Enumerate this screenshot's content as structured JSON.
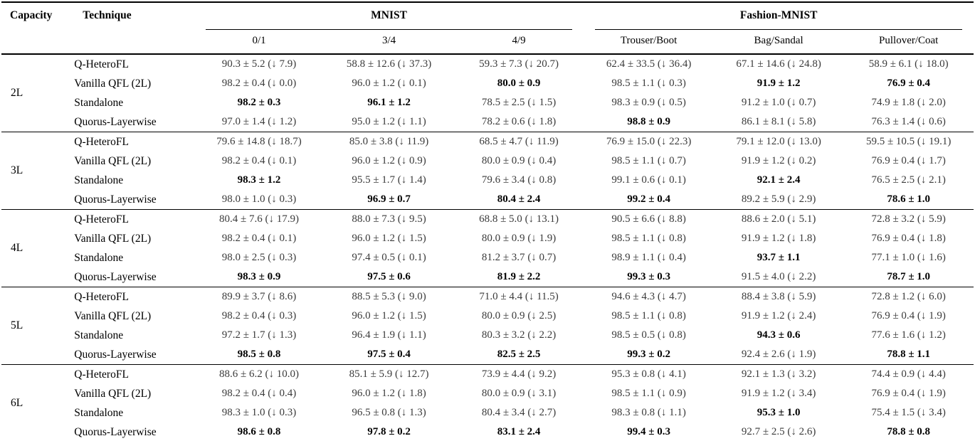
{
  "table": {
    "col_headers": {
      "capacity": "Capacity",
      "technique": "Technique"
    },
    "groups": [
      {
        "label": "MNIST",
        "subcols": [
          "0/1",
          "3/4",
          "4/9"
        ]
      },
      {
        "label": "Fashion-MNIST",
        "subcols": [
          "Trouser/Boot",
          "Bag/Sandal",
          "Pullover/Coat"
        ]
      }
    ],
    "blocks": [
      {
        "capacity": "2L",
        "rows": [
          {
            "technique": "Q-HeteroFL",
            "cells": [
              {
                "value": "90.3 ± 5.2",
                "drop": "(↓ 7.9)"
              },
              {
                "value": "58.8 ± 12.6",
                "drop": "(↓ 37.3)"
              },
              {
                "value": "59.3 ± 7.3",
                "drop": "(↓ 20.7)"
              },
              {
                "value": "62.4 ± 33.5",
                "drop": "(↓ 36.4)"
              },
              {
                "value": "67.1 ± 14.6",
                "drop": "(↓ 24.8)"
              },
              {
                "value": "58.9 ± 6.1",
                "drop": "(↓ 18.0)"
              }
            ]
          },
          {
            "technique": "Vanilla QFL (2L)",
            "cells": [
              {
                "value": "98.2 ± 0.4",
                "drop": "(↓ 0.0)"
              },
              {
                "value": "96.0 ± 1.2",
                "drop": "(↓ 0.1)"
              },
              {
                "value": "80.0 ± 0.9",
                "bold": true
              },
              {
                "value": "98.5 ± 1.1",
                "drop": "(↓ 0.3)"
              },
              {
                "value": "91.9 ± 1.2",
                "bold": true
              },
              {
                "value": "76.9 ± 0.4",
                "bold": true
              }
            ]
          },
          {
            "technique": "Standalone",
            "cells": [
              {
                "value": "98.2 ± 0.3",
                "bold": true
              },
              {
                "value": "96.1 ± 1.2",
                "bold": true
              },
              {
                "value": "78.5 ± 2.5",
                "drop": "(↓ 1.5)"
              },
              {
                "value": "98.3 ± 0.9",
                "drop": "(↓ 0.5)"
              },
              {
                "value": "91.2 ± 1.0",
                "drop": "(↓ 0.7)"
              },
              {
                "value": "74.9 ± 1.8",
                "drop": "(↓ 2.0)"
              }
            ]
          },
          {
            "technique": "Quorus-Layerwise",
            "cells": [
              {
                "value": "97.0 ± 1.4",
                "drop": "(↓ 1.2)"
              },
              {
                "value": "95.0 ± 1.2",
                "drop": "(↓ 1.1)"
              },
              {
                "value": "78.2 ± 0.6",
                "drop": "(↓ 1.8)"
              },
              {
                "value": "98.8 ± 0.9",
                "bold": true
              },
              {
                "value": "86.1 ± 8.1",
                "drop": "(↓ 5.8)"
              },
              {
                "value": "76.3 ± 1.4",
                "drop": "(↓ 0.6)"
              }
            ]
          }
        ]
      },
      {
        "capacity": "3L",
        "rows": [
          {
            "technique": "Q-HeteroFL",
            "cells": [
              {
                "value": "79.6 ± 14.8",
                "drop": "(↓ 18.7)"
              },
              {
                "value": "85.0 ± 3.8",
                "drop": "(↓ 11.9)"
              },
              {
                "value": "68.5 ± 4.7",
                "drop": "(↓ 11.9)"
              },
              {
                "value": "76.9 ± 15.0",
                "drop": "(↓ 22.3)"
              },
              {
                "value": "79.1 ± 12.0",
                "drop": "(↓ 13.0)"
              },
              {
                "value": "59.5 ± 10.5",
                "drop": "(↓ 19.1)"
              }
            ]
          },
          {
            "technique": "Vanilla QFL (2L)",
            "cells": [
              {
                "value": "98.2 ± 0.4",
                "drop": "(↓ 0.1)"
              },
              {
                "value": "96.0 ± 1.2",
                "drop": "(↓ 0.9)"
              },
              {
                "value": "80.0 ± 0.9",
                "drop": "(↓ 0.4)"
              },
              {
                "value": "98.5 ± 1.1",
                "drop": "(↓ 0.7)"
              },
              {
                "value": "91.9 ± 1.2",
                "drop": "(↓ 0.2)"
              },
              {
                "value": "76.9 ± 0.4",
                "drop": "(↓ 1.7)"
              }
            ]
          },
          {
            "technique": "Standalone",
            "cells": [
              {
                "value": "98.3 ± 1.2",
                "bold": true
              },
              {
                "value": "95.5 ± 1.7",
                "drop": "(↓ 1.4)"
              },
              {
                "value": "79.6 ± 3.4",
                "drop": "(↓ 0.8)"
              },
              {
                "value": "99.1 ± 0.6",
                "drop": "(↓ 0.1)"
              },
              {
                "value": "92.1 ± 2.4",
                "bold": true
              },
              {
                "value": "76.5 ± 2.5",
                "drop": "(↓ 2.1)"
              }
            ]
          },
          {
            "technique": "Quorus-Layerwise",
            "cells": [
              {
                "value": "98.0 ± 1.0",
                "drop": "(↓ 0.3)"
              },
              {
                "value": "96.9 ± 0.7",
                "bold": true
              },
              {
                "value": "80.4 ± 2.4",
                "bold": true
              },
              {
                "value": "99.2 ± 0.4",
                "bold": true
              },
              {
                "value": "89.2 ± 5.9",
                "drop": "(↓ 2.9)"
              },
              {
                "value": "78.6 ± 1.0",
                "bold": true
              }
            ]
          }
        ]
      },
      {
        "capacity": "4L",
        "rows": [
          {
            "technique": "Q-HeteroFL",
            "cells": [
              {
                "value": "80.4 ± 7.6",
                "drop": "(↓ 17.9)"
              },
              {
                "value": "88.0 ± 7.3",
                "drop": "(↓ 9.5)"
              },
              {
                "value": "68.8 ± 5.0",
                "drop": "(↓ 13.1)"
              },
              {
                "value": "90.5 ± 6.6",
                "drop": "(↓ 8.8)"
              },
              {
                "value": "88.6 ± 2.0",
                "drop": "(↓ 5.1)"
              },
              {
                "value": "72.8 ± 3.2",
                "drop": "(↓ 5.9)"
              }
            ]
          },
          {
            "technique": "Vanilla QFL (2L)",
            "cells": [
              {
                "value": "98.2 ± 0.4",
                "drop": "(↓ 0.1)"
              },
              {
                "value": "96.0 ± 1.2",
                "drop": "(↓ 1.5)"
              },
              {
                "value": "80.0 ± 0.9",
                "drop": "(↓ 1.9)"
              },
              {
                "value": "98.5 ± 1.1",
                "drop": "(↓ 0.8)"
              },
              {
                "value": "91.9 ± 1.2",
                "drop": "(↓ 1.8)"
              },
              {
                "value": "76.9 ± 0.4",
                "drop": "(↓ 1.8)"
              }
            ]
          },
          {
            "technique": "Standalone",
            "cells": [
              {
                "value": "98.0 ± 2.5",
                "drop": "(↓ 0.3)"
              },
              {
                "value": "97.4 ± 0.5",
                "drop": "(↓ 0.1)"
              },
              {
                "value": "81.2 ± 3.7",
                "drop": "(↓ 0.7)"
              },
              {
                "value": "98.9 ± 1.1",
                "drop": "(↓ 0.4)"
              },
              {
                "value": "93.7 ± 1.1",
                "bold": true
              },
              {
                "value": "77.1 ± 1.0",
                "drop": "(↓ 1.6)"
              }
            ]
          },
          {
            "technique": "Quorus-Layerwise",
            "cells": [
              {
                "value": "98.3 ± 0.9",
                "bold": true
              },
              {
                "value": "97.5 ± 0.6",
                "bold": true
              },
              {
                "value": "81.9 ± 2.2",
                "bold": true
              },
              {
                "value": "99.3 ± 0.3",
                "bold": true
              },
              {
                "value": "91.5 ± 4.0",
                "drop": "(↓ 2.2)"
              },
              {
                "value": "78.7 ± 1.0",
                "bold": true
              }
            ]
          }
        ]
      },
      {
        "capacity": "5L",
        "rows": [
          {
            "technique": "Q-HeteroFL",
            "cells": [
              {
                "value": "89.9 ± 3.7",
                "drop": "(↓ 8.6)"
              },
              {
                "value": "88.5 ± 5.3",
                "drop": "(↓ 9.0)"
              },
              {
                "value": "71.0 ± 4.4",
                "drop": "(↓ 11.5)"
              },
              {
                "value": "94.6 ± 4.3",
                "drop": "(↓ 4.7)"
              },
              {
                "value": "88.4 ± 3.8",
                "drop": "(↓ 5.9)"
              },
              {
                "value": "72.8 ± 1.2",
                "drop": "(↓ 6.0)"
              }
            ]
          },
          {
            "technique": "Vanilla QFL (2L)",
            "cells": [
              {
                "value": "98.2 ± 0.4",
                "drop": "(↓ 0.3)"
              },
              {
                "value": "96.0 ± 1.2",
                "drop": "(↓ 1.5)"
              },
              {
                "value": "80.0 ± 0.9",
                "drop": "(↓ 2.5)"
              },
              {
                "value": "98.5 ± 1.1",
                "drop": "(↓ 0.8)"
              },
              {
                "value": "91.9 ± 1.2",
                "drop": "(↓ 2.4)"
              },
              {
                "value": "76.9 ± 0.4",
                "drop": "(↓ 1.9)"
              }
            ]
          },
          {
            "technique": "Standalone",
            "cells": [
              {
                "value": "97.2 ± 1.7",
                "drop": "(↓ 1.3)"
              },
              {
                "value": "96.4 ± 1.9",
                "drop": "(↓ 1.1)"
              },
              {
                "value": "80.3 ± 3.2",
                "drop": "(↓ 2.2)"
              },
              {
                "value": "98.5 ± 0.5",
                "drop": "(↓ 0.8)"
              },
              {
                "value": "94.3 ± 0.6",
                "bold": true
              },
              {
                "value": "77.6 ± 1.6",
                "drop": "(↓ 1.2)"
              }
            ]
          },
          {
            "technique": "Quorus-Layerwise",
            "cells": [
              {
                "value": "98.5 ± 0.8",
                "bold": true
              },
              {
                "value": "97.5 ± 0.4",
                "bold": true
              },
              {
                "value": "82.5 ± 2.5",
                "bold": true
              },
              {
                "value": "99.3 ± 0.2",
                "bold": true
              },
              {
                "value": "92.4 ± 2.6",
                "drop": "(↓ 1.9)"
              },
              {
                "value": "78.8 ± 1.1",
                "bold": true
              }
            ]
          }
        ]
      },
      {
        "capacity": "6L",
        "rows": [
          {
            "technique": "Q-HeteroFL",
            "cells": [
              {
                "value": "88.6 ± 6.2",
                "drop": "(↓ 10.0)"
              },
              {
                "value": "85.1 ± 5.9",
                "drop": "(↓ 12.7)"
              },
              {
                "value": "73.9 ± 4.4",
                "drop": "(↓ 9.2)"
              },
              {
                "value": "95.3 ± 0.8",
                "drop": "(↓ 4.1)"
              },
              {
                "value": "92.1 ± 1.3",
                "drop": "(↓ 3.2)"
              },
              {
                "value": "74.4 ± 0.9",
                "drop": "(↓ 4.4)"
              }
            ]
          },
          {
            "technique": "Vanilla QFL (2L)",
            "cells": [
              {
                "value": "98.2 ± 0.4",
                "drop": "(↓ 0.4)"
              },
              {
                "value": "96.0 ± 1.2",
                "drop": "(↓ 1.8)"
              },
              {
                "value": "80.0 ± 0.9",
                "drop": "(↓ 3.1)"
              },
              {
                "value": "98.5 ± 1.1",
                "drop": "(↓ 0.9)"
              },
              {
                "value": "91.9 ± 1.2",
                "drop": "(↓ 3.4)"
              },
              {
                "value": "76.9 ± 0.4",
                "drop": "(↓ 1.9)"
              }
            ]
          },
          {
            "technique": "Standalone",
            "cells": [
              {
                "value": "98.3 ± 1.0",
                "drop": "(↓ 0.3)"
              },
              {
                "value": "96.5 ± 0.8",
                "drop": "(↓ 1.3)"
              },
              {
                "value": "80.4 ± 3.4",
                "drop": "(↓ 2.7)"
              },
              {
                "value": "98.3 ± 0.8",
                "drop": "(↓ 1.1)"
              },
              {
                "value": "95.3 ± 1.0",
                "bold": true
              },
              {
                "value": "75.4 ± 1.5",
                "drop": "(↓ 3.4)"
              }
            ]
          },
          {
            "technique": "Quorus-Layerwise",
            "cells": [
              {
                "value": "98.6 ± 0.8",
                "bold": true
              },
              {
                "value": "97.8 ± 0.2",
                "bold": true
              },
              {
                "value": "83.1 ± 2.4",
                "bold": true
              },
              {
                "value": "99.4 ± 0.3",
                "bold": true
              },
              {
                "value": "92.7 ± 2.5",
                "drop": "(↓ 2.6)"
              },
              {
                "value": "78.8 ± 0.8",
                "bold": true
              }
            ]
          }
        ]
      }
    ]
  }
}
